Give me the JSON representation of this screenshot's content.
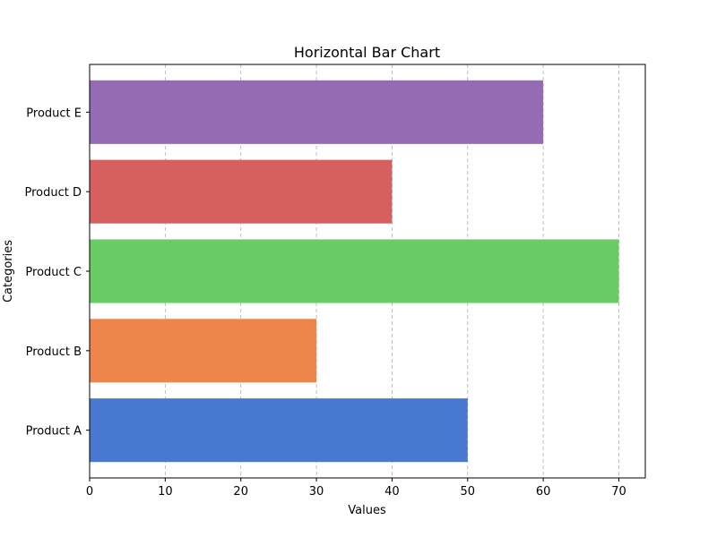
{
  "chart_data": {
    "type": "bar",
    "orientation": "horizontal",
    "title": "Horizontal Bar Chart",
    "xlabel": "Values",
    "ylabel": "Categories",
    "categories": [
      "Product A",
      "Product B",
      "Product C",
      "Product D",
      "Product E"
    ],
    "values": [
      50,
      30,
      70,
      40,
      60
    ],
    "colors": [
      "#4878d0",
      "#ee854a",
      "#6acc64",
      "#d65f5f",
      "#956cb4"
    ],
    "xlim": [
      0,
      73.5
    ],
    "xticks": [
      0,
      10,
      20,
      30,
      40,
      50,
      60,
      70
    ],
    "grid": "x-axis dashed",
    "legend": "none"
  }
}
